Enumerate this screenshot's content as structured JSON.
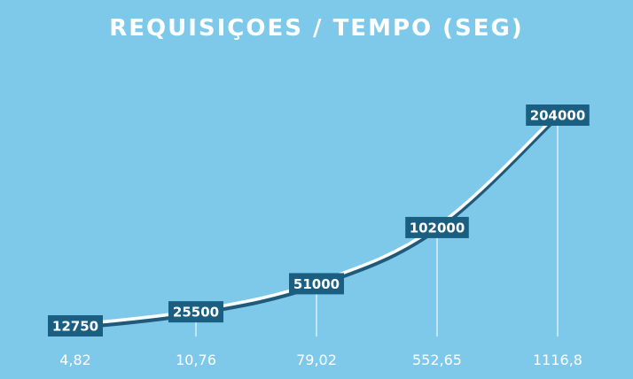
{
  "chart_data": {
    "type": "line",
    "title": "REQUISIÇOES / TEMPO (SEG)",
    "categories": [
      "4,82",
      "10,76",
      "79,02",
      "552,65",
      "1116,8"
    ],
    "values": [
      12750,
      25500,
      51000,
      102000,
      204000
    ],
    "value_labels": [
      "12750",
      "25500",
      "51000",
      "102000",
      "204000"
    ],
    "xlabel": "",
    "ylabel": "",
    "grid": false,
    "legend": "none",
    "colors": {
      "background": "#7ec9ea",
      "line": "#1f5a7a",
      "line_highlight": "#ffffff",
      "label_box": "#1a5f82",
      "text": "#ffffff"
    }
  }
}
